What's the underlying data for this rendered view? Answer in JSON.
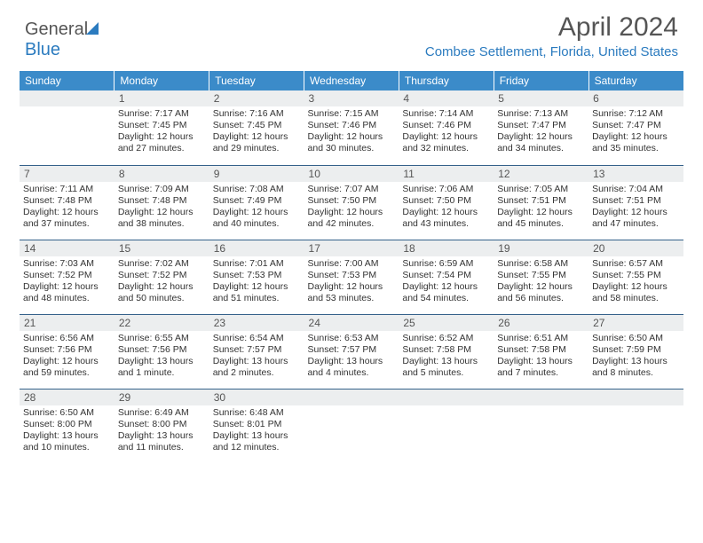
{
  "logo": {
    "part1": "General",
    "part2": "Blue"
  },
  "title": "April 2024",
  "location": "Combee Settlement, Florida, United States",
  "colors": {
    "header_bg": "#3b8bc9",
    "border": "#35618a",
    "daynum_bg": "#eceeef",
    "accent": "#2b7bbf"
  },
  "weekdays": [
    "Sunday",
    "Monday",
    "Tuesday",
    "Wednesday",
    "Thursday",
    "Friday",
    "Saturday"
  ],
  "grid": [
    [
      {
        "n": "",
        "lines": []
      },
      {
        "n": "1",
        "lines": [
          "Sunrise: 7:17 AM",
          "Sunset: 7:45 PM",
          "Daylight: 12 hours",
          "and 27 minutes."
        ]
      },
      {
        "n": "2",
        "lines": [
          "Sunrise: 7:16 AM",
          "Sunset: 7:45 PM",
          "Daylight: 12 hours",
          "and 29 minutes."
        ]
      },
      {
        "n": "3",
        "lines": [
          "Sunrise: 7:15 AM",
          "Sunset: 7:46 PM",
          "Daylight: 12 hours",
          "and 30 minutes."
        ]
      },
      {
        "n": "4",
        "lines": [
          "Sunrise: 7:14 AM",
          "Sunset: 7:46 PM",
          "Daylight: 12 hours",
          "and 32 minutes."
        ]
      },
      {
        "n": "5",
        "lines": [
          "Sunrise: 7:13 AM",
          "Sunset: 7:47 PM",
          "Daylight: 12 hours",
          "and 34 minutes."
        ]
      },
      {
        "n": "6",
        "lines": [
          "Sunrise: 7:12 AM",
          "Sunset: 7:47 PM",
          "Daylight: 12 hours",
          "and 35 minutes."
        ]
      }
    ],
    [
      {
        "n": "7",
        "lines": [
          "Sunrise: 7:11 AM",
          "Sunset: 7:48 PM",
          "Daylight: 12 hours",
          "and 37 minutes."
        ]
      },
      {
        "n": "8",
        "lines": [
          "Sunrise: 7:09 AM",
          "Sunset: 7:48 PM",
          "Daylight: 12 hours",
          "and 38 minutes."
        ]
      },
      {
        "n": "9",
        "lines": [
          "Sunrise: 7:08 AM",
          "Sunset: 7:49 PM",
          "Daylight: 12 hours",
          "and 40 minutes."
        ]
      },
      {
        "n": "10",
        "lines": [
          "Sunrise: 7:07 AM",
          "Sunset: 7:50 PM",
          "Daylight: 12 hours",
          "and 42 minutes."
        ]
      },
      {
        "n": "11",
        "lines": [
          "Sunrise: 7:06 AM",
          "Sunset: 7:50 PM",
          "Daylight: 12 hours",
          "and 43 minutes."
        ]
      },
      {
        "n": "12",
        "lines": [
          "Sunrise: 7:05 AM",
          "Sunset: 7:51 PM",
          "Daylight: 12 hours",
          "and 45 minutes."
        ]
      },
      {
        "n": "13",
        "lines": [
          "Sunrise: 7:04 AM",
          "Sunset: 7:51 PM",
          "Daylight: 12 hours",
          "and 47 minutes."
        ]
      }
    ],
    [
      {
        "n": "14",
        "lines": [
          "Sunrise: 7:03 AM",
          "Sunset: 7:52 PM",
          "Daylight: 12 hours",
          "and 48 minutes."
        ]
      },
      {
        "n": "15",
        "lines": [
          "Sunrise: 7:02 AM",
          "Sunset: 7:52 PM",
          "Daylight: 12 hours",
          "and 50 minutes."
        ]
      },
      {
        "n": "16",
        "lines": [
          "Sunrise: 7:01 AM",
          "Sunset: 7:53 PM",
          "Daylight: 12 hours",
          "and 51 minutes."
        ]
      },
      {
        "n": "17",
        "lines": [
          "Sunrise: 7:00 AM",
          "Sunset: 7:53 PM",
          "Daylight: 12 hours",
          "and 53 minutes."
        ]
      },
      {
        "n": "18",
        "lines": [
          "Sunrise: 6:59 AM",
          "Sunset: 7:54 PM",
          "Daylight: 12 hours",
          "and 54 minutes."
        ]
      },
      {
        "n": "19",
        "lines": [
          "Sunrise: 6:58 AM",
          "Sunset: 7:55 PM",
          "Daylight: 12 hours",
          "and 56 minutes."
        ]
      },
      {
        "n": "20",
        "lines": [
          "Sunrise: 6:57 AM",
          "Sunset: 7:55 PM",
          "Daylight: 12 hours",
          "and 58 minutes."
        ]
      }
    ],
    [
      {
        "n": "21",
        "lines": [
          "Sunrise: 6:56 AM",
          "Sunset: 7:56 PM",
          "Daylight: 12 hours",
          "and 59 minutes."
        ]
      },
      {
        "n": "22",
        "lines": [
          "Sunrise: 6:55 AM",
          "Sunset: 7:56 PM",
          "Daylight: 13 hours",
          "and 1 minute."
        ]
      },
      {
        "n": "23",
        "lines": [
          "Sunrise: 6:54 AM",
          "Sunset: 7:57 PM",
          "Daylight: 13 hours",
          "and 2 minutes."
        ]
      },
      {
        "n": "24",
        "lines": [
          "Sunrise: 6:53 AM",
          "Sunset: 7:57 PM",
          "Daylight: 13 hours",
          "and 4 minutes."
        ]
      },
      {
        "n": "25",
        "lines": [
          "Sunrise: 6:52 AM",
          "Sunset: 7:58 PM",
          "Daylight: 13 hours",
          "and 5 minutes."
        ]
      },
      {
        "n": "26",
        "lines": [
          "Sunrise: 6:51 AM",
          "Sunset: 7:58 PM",
          "Daylight: 13 hours",
          "and 7 minutes."
        ]
      },
      {
        "n": "27",
        "lines": [
          "Sunrise: 6:50 AM",
          "Sunset: 7:59 PM",
          "Daylight: 13 hours",
          "and 8 minutes."
        ]
      }
    ],
    [
      {
        "n": "28",
        "lines": [
          "Sunrise: 6:50 AM",
          "Sunset: 8:00 PM",
          "Daylight: 13 hours",
          "and 10 minutes."
        ]
      },
      {
        "n": "29",
        "lines": [
          "Sunrise: 6:49 AM",
          "Sunset: 8:00 PM",
          "Daylight: 13 hours",
          "and 11 minutes."
        ]
      },
      {
        "n": "30",
        "lines": [
          "Sunrise: 6:48 AM",
          "Sunset: 8:01 PM",
          "Daylight: 13 hours",
          "and 12 minutes."
        ]
      },
      {
        "n": "",
        "lines": []
      },
      {
        "n": "",
        "lines": []
      },
      {
        "n": "",
        "lines": []
      },
      {
        "n": "",
        "lines": []
      }
    ]
  ]
}
